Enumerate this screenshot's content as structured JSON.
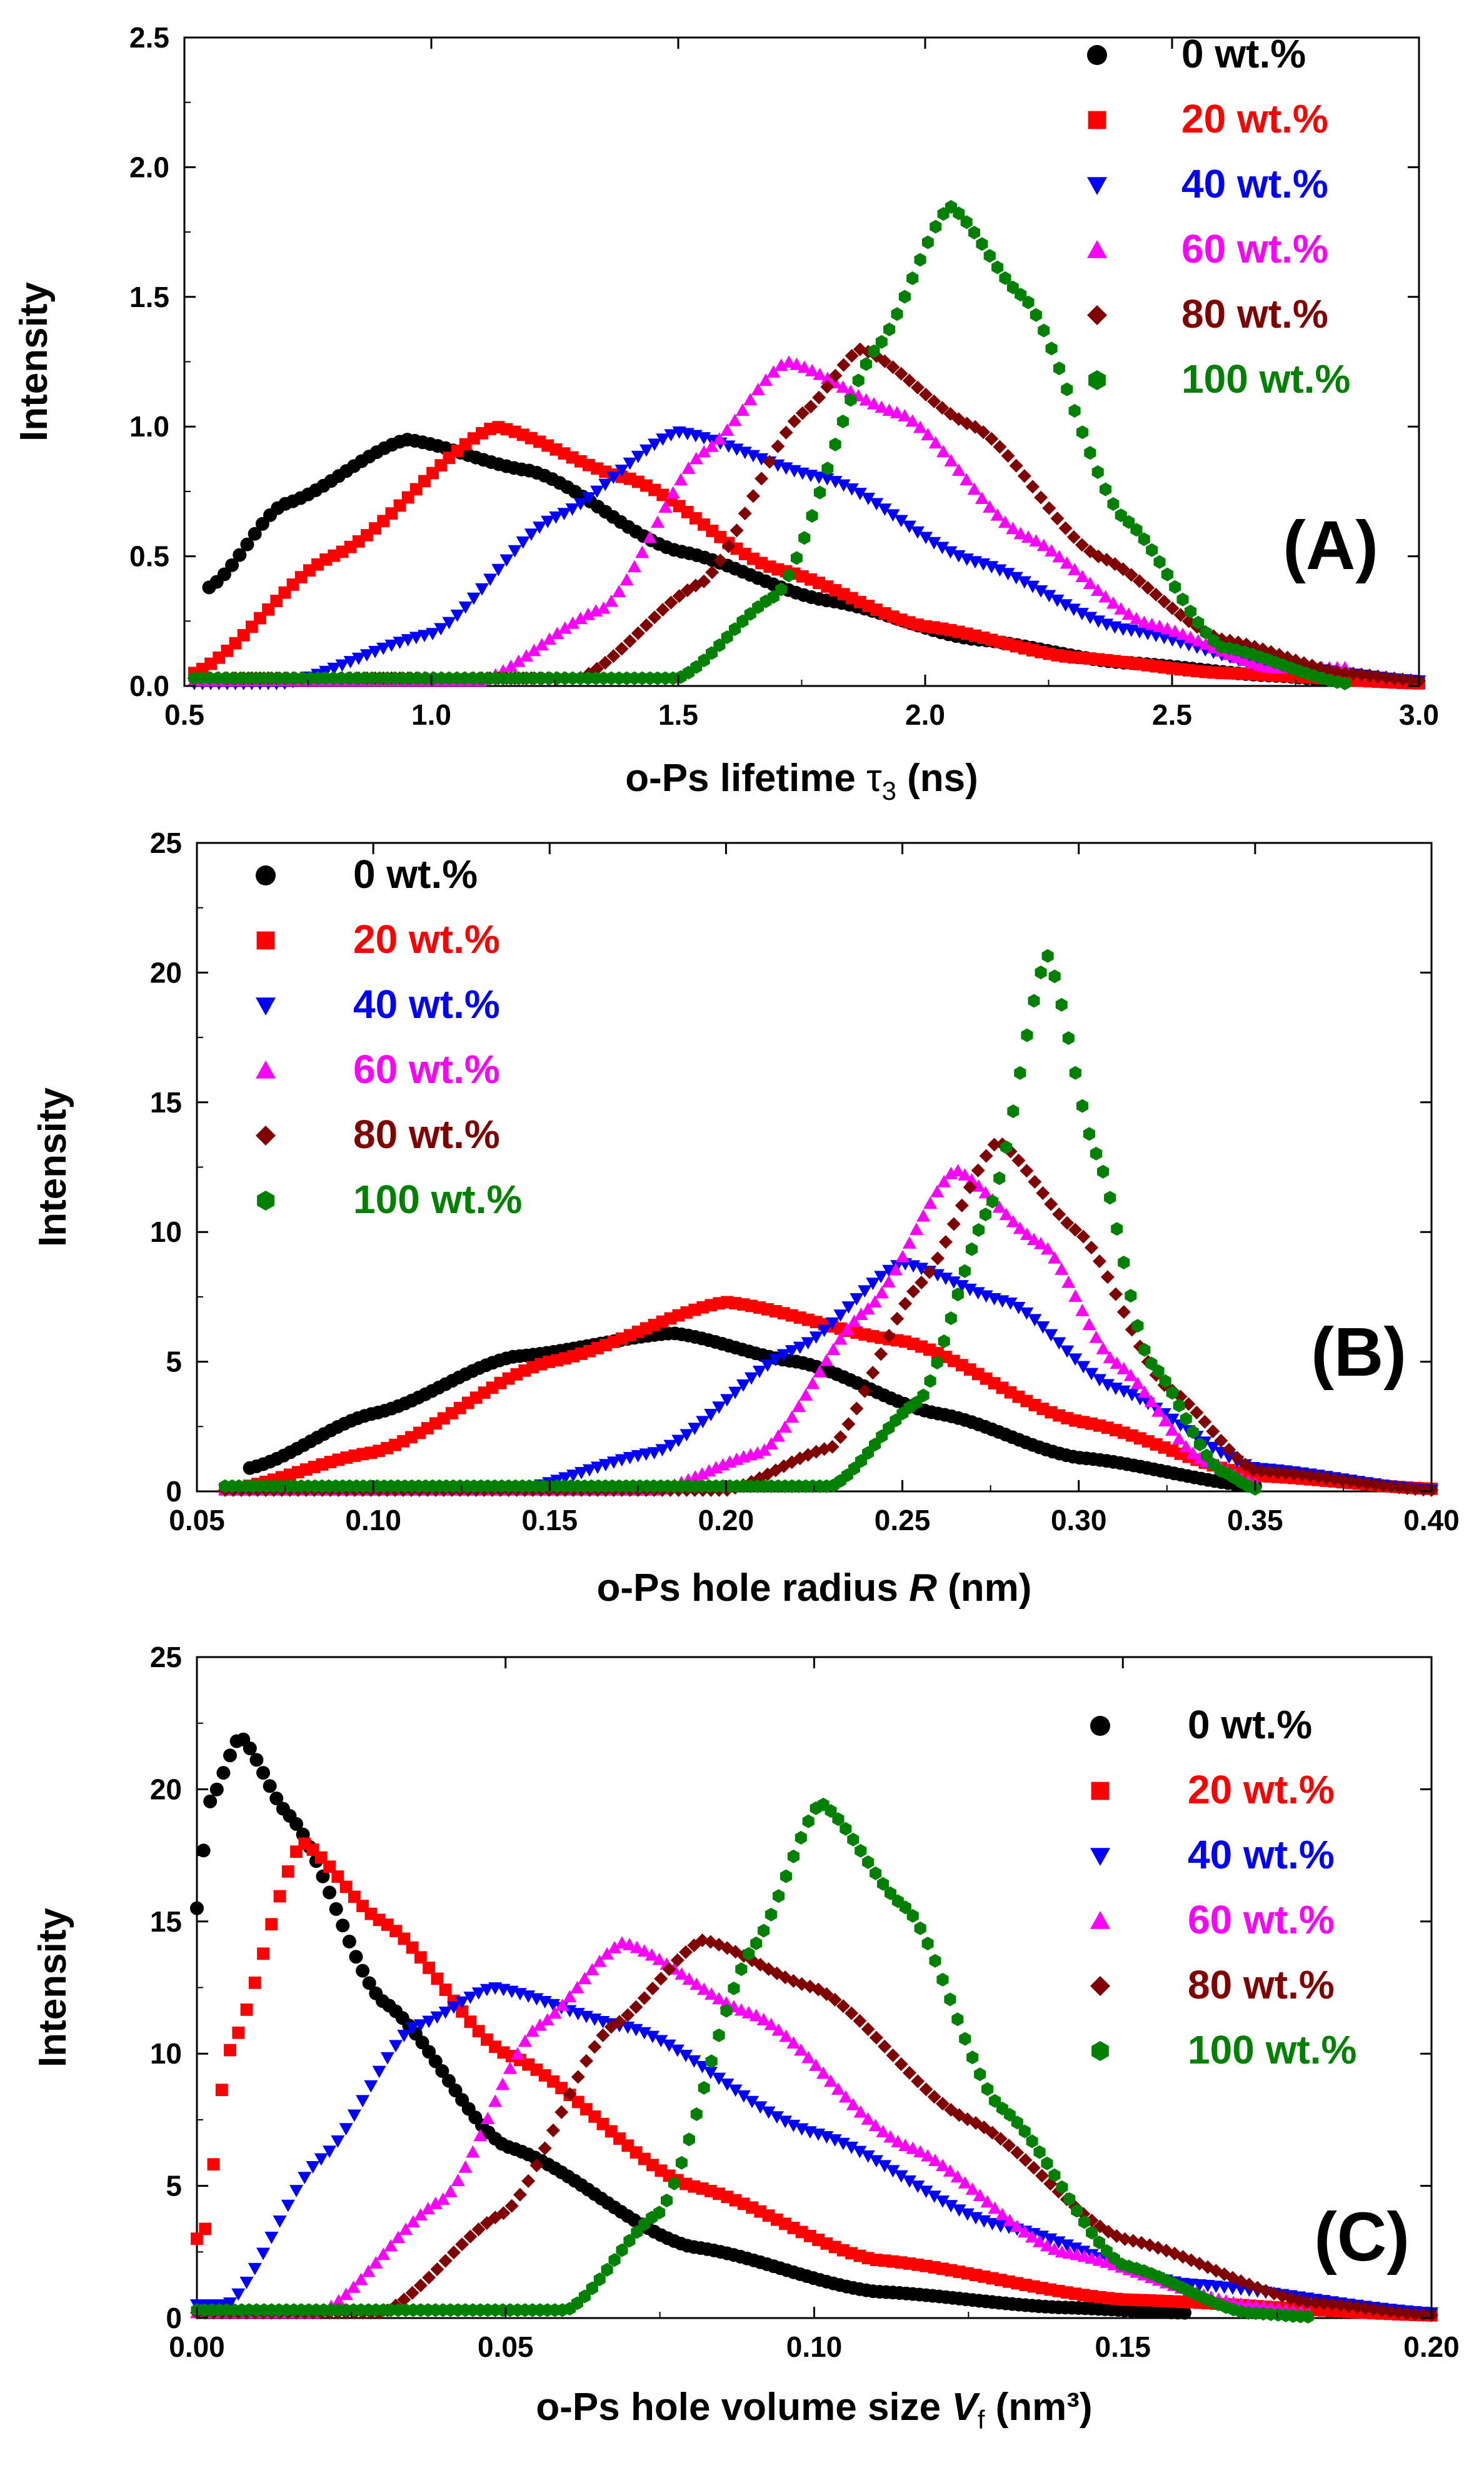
{
  "chart_data": [
    {
      "type": "scatter",
      "panel_label": "(A)",
      "title": "",
      "xlabel": {
        "prefix": "o-Ps lifetime ",
        "symbol": "τ",
        "subscript": "3",
        "suffix": " (ns)"
      },
      "ylabel": "Intensity",
      "xlim": [
        0.5,
        3.0
      ],
      "ylim": [
        0,
        2.5
      ],
      "xticks": [
        "0.5",
        "1.0",
        "1.5",
        "2.0",
        "2.5",
        "3.0"
      ],
      "yticks": [
        "0.0",
        "0.5",
        "1.0",
        "1.5",
        "2.0",
        "2.5"
      ],
      "legend_position": "top-right",
      "grid": false,
      "series": [
        {
          "name": "0 wt.%",
          "color": "#000000",
          "marker": "circle",
          "peak_x": 0.95,
          "peak_y": 0.95,
          "x_range": [
            0.55,
            2.85
          ],
          "values": [
            [
              0.55,
              0.38
            ],
            [
              0.7,
              0.7
            ],
            [
              0.95,
              0.95
            ],
            [
              1.2,
              0.83
            ],
            [
              1.5,
              0.52
            ],
            [
              1.8,
              0.33
            ],
            [
              2.1,
              0.18
            ],
            [
              2.4,
              0.09
            ],
            [
              2.7,
              0.04
            ],
            [
              2.85,
              0.02
            ]
          ]
        },
        {
          "name": "20 wt.%",
          "color": "#ff0000",
          "marker": "square",
          "peak_x": 1.13,
          "peak_y": 1.0,
          "x_range": [
            0.52,
            3.0
          ],
          "values": [
            [
              0.52,
              0.05
            ],
            [
              0.8,
              0.5
            ],
            [
              1.13,
              1.0
            ],
            [
              1.4,
              0.8
            ],
            [
              1.7,
              0.45
            ],
            [
              2.0,
              0.23
            ],
            [
              2.3,
              0.11
            ],
            [
              2.6,
              0.05
            ],
            [
              3.0,
              0.01
            ]
          ]
        },
        {
          "name": "40 wt.%",
          "color": "#0000ff",
          "marker": "triangle-down",
          "peak_x": 1.5,
          "peak_y": 0.98,
          "x_range": [
            0.52,
            3.0
          ],
          "values": [
            [
              0.7,
              0.01
            ],
            [
              1.0,
              0.2
            ],
            [
              1.25,
              0.65
            ],
            [
              1.5,
              0.98
            ],
            [
              1.8,
              0.8
            ],
            [
              2.1,
              0.48
            ],
            [
              2.4,
              0.22
            ],
            [
              2.7,
              0.08
            ],
            [
              3.0,
              0.02
            ]
          ]
        },
        {
          "name": "60 wt.%",
          "color": "#ff00ff",
          "marker": "triangle-up",
          "peak_x": 1.72,
          "peak_y": 1.25,
          "x_range": [
            0.52,
            2.85
          ],
          "values": [
            [
              1.1,
              0.02
            ],
            [
              1.35,
              0.3
            ],
            [
              1.55,
              0.9
            ],
            [
              1.72,
              1.25
            ],
            [
              1.95,
              1.05
            ],
            [
              2.2,
              0.58
            ],
            [
              2.45,
              0.24
            ],
            [
              2.7,
              0.07
            ]
          ]
        },
        {
          "name": "80 wt.%",
          "color": "#800000",
          "marker": "diamond",
          "peak_x": 1.87,
          "peak_y": 1.3,
          "x_range": [
            0.52,
            3.0
          ],
          "values": [
            [
              1.3,
              0.03
            ],
            [
              1.55,
              0.4
            ],
            [
              1.75,
              1.05
            ],
            [
              1.87,
              1.3
            ],
            [
              2.1,
              1.0
            ],
            [
              2.35,
              0.5
            ],
            [
              2.6,
              0.18
            ],
            [
              2.85,
              0.05
            ],
            [
              3.0,
              0.02
            ]
          ]
        },
        {
          "name": "100 wt.%",
          "color": "#008000",
          "marker": "hexagon",
          "peak_x": 2.05,
          "peak_y": 1.85,
          "x_range": [
            0.52,
            2.85
          ],
          "values": [
            [
              1.5,
              0.03
            ],
            [
              1.7,
              0.35
            ],
            [
              1.9,
              1.3
            ],
            [
              2.05,
              1.85
            ],
            [
              2.2,
              1.5
            ],
            [
              2.4,
              0.65
            ],
            [
              2.6,
              0.15
            ],
            [
              2.85,
              0.01
            ]
          ]
        }
      ]
    },
    {
      "type": "scatter",
      "panel_label": "(B)",
      "title": "",
      "xlabel": {
        "prefix": "o-Ps hole radius ",
        "symbol": "R",
        "subscript": "",
        "suffix": " (nm)"
      },
      "ylabel": "Intensity",
      "xlim": [
        0.05,
        0.4
      ],
      "ylim": [
        0,
        25
      ],
      "xticks": [
        "0.05",
        "0.10",
        "0.15",
        "0.20",
        "0.25",
        "0.30",
        "0.35",
        "0.40"
      ],
      "yticks": [
        "0",
        "5",
        "10",
        "15",
        "20",
        "25"
      ],
      "legend_position": "top-left",
      "grid": false,
      "series": [
        {
          "name": "0 wt.%",
          "color": "#000000",
          "marker": "circle",
          "peak_x": 0.185,
          "peak_y": 6.1,
          "x_range": [
            0.065,
            0.35
          ],
          "values": [
            [
              0.065,
              0.9
            ],
            [
              0.1,
              3.0
            ],
            [
              0.14,
              5.2
            ],
            [
              0.185,
              6.1
            ],
            [
              0.22,
              5.0
            ],
            [
              0.26,
              3.0
            ],
            [
              0.3,
              1.3
            ],
            [
              0.35,
              0.2
            ]
          ]
        },
        {
          "name": "20 wt.%",
          "color": "#ff0000",
          "marker": "square",
          "peak_x": 0.2,
          "peak_y": 7.3,
          "x_range": [
            0.058,
            0.4
          ],
          "values": [
            [
              0.06,
              0.1
            ],
            [
              0.1,
              1.5
            ],
            [
              0.15,
              5.0
            ],
            [
              0.2,
              7.3
            ],
            [
              0.25,
              5.8
            ],
            [
              0.3,
              2.7
            ],
            [
              0.35,
              0.6
            ],
            [
              0.4,
              0.1
            ]
          ]
        },
        {
          "name": "40 wt.%",
          "color": "#0000ff",
          "marker": "triangle-down",
          "peak_x": 0.25,
          "peak_y": 8.8,
          "x_range": [
            0.058,
            0.4
          ],
          "values": [
            [
              0.14,
              0.05
            ],
            [
              0.18,
              1.5
            ],
            [
              0.22,
              5.5
            ],
            [
              0.25,
              8.8
            ],
            [
              0.28,
              7.3
            ],
            [
              0.31,
              4.0
            ],
            [
              0.35,
              0.9
            ],
            [
              0.4,
              0.05
            ]
          ]
        },
        {
          "name": "60 wt.%",
          "color": "#ff00ff",
          "marker": "triangle-up",
          "peak_x": 0.265,
          "peak_y": 12.4,
          "x_range": [
            0.058,
            0.35
          ],
          "values": [
            [
              0.18,
              0.05
            ],
            [
              0.21,
              1.5
            ],
            [
              0.24,
              7.0
            ],
            [
              0.265,
              12.4
            ],
            [
              0.29,
              9.5
            ],
            [
              0.31,
              5.0
            ],
            [
              0.335,
              1.2
            ],
            [
              0.35,
              0.3
            ]
          ]
        },
        {
          "name": "80 wt.%",
          "color": "#800000",
          "marker": "diamond",
          "peak_x": 0.277,
          "peak_y": 13.5,
          "x_range": [
            0.058,
            0.4
          ],
          "values": [
            [
              0.2,
              0.05
            ],
            [
              0.23,
              1.7
            ],
            [
              0.255,
              8.0
            ],
            [
              0.277,
              13.5
            ],
            [
              0.3,
              10.0
            ],
            [
              0.325,
              4.0
            ],
            [
              0.35,
              0.8
            ],
            [
              0.4,
              0.05
            ]
          ]
        },
        {
          "name": "100 wt.%",
          "color": "#008000",
          "marker": "hexagon",
          "peak_x": 0.291,
          "peak_y": 20.7,
          "x_range": [
            0.058,
            0.35
          ],
          "values": [
            [
              0.23,
              0.2
            ],
            [
              0.255,
              3.5
            ],
            [
              0.275,
              11.0
            ],
            [
              0.291,
              20.7
            ],
            [
              0.305,
              13.0
            ],
            [
              0.32,
              5.0
            ],
            [
              0.34,
              0.8
            ],
            [
              0.35,
              0.1
            ]
          ]
        }
      ]
    },
    {
      "type": "scatter",
      "panel_label": "(C)",
      "title": "",
      "xlabel": {
        "prefix": "o-Ps hole volume size ",
        "symbol": "V",
        "subscript": "f",
        "suffix": " (nm³)"
      },
      "ylabel": "Intensity",
      "xlim": [
        0.0,
        0.2
      ],
      "ylim": [
        0,
        25
      ],
      "xticks": [
        "0.00",
        "0.05",
        "0.10",
        "0.15",
        "0.20"
      ],
      "yticks": [
        "0",
        "5",
        "10",
        "15",
        "20",
        "25"
      ],
      "legend_position": "top-right",
      "grid": false,
      "series": [
        {
          "name": "0 wt.%",
          "color": "#000000",
          "marker": "circle",
          "peak_x": 0.007,
          "peak_y": 22.0,
          "x_range": [
            0.0,
            0.16
          ],
          "values": [
            [
              0.0,
              15.5
            ],
            [
              0.002,
              19.5
            ],
            [
              0.007,
              22.0
            ],
            [
              0.015,
              19.0
            ],
            [
              0.03,
              12.0
            ],
            [
              0.05,
              6.5
            ],
            [
              0.08,
              2.7
            ],
            [
              0.11,
              1.0
            ],
            [
              0.14,
              0.4
            ],
            [
              0.16,
              0.2
            ]
          ]
        },
        {
          "name": "20 wt.%",
          "color": "#ff0000",
          "marker": "square",
          "peak_x": 0.017,
          "peak_y": 18.0,
          "x_range": [
            0.0,
            0.2
          ],
          "values": [
            [
              0.001,
              3.0
            ],
            [
              0.005,
              10.0
            ],
            [
              0.017,
              18.0
            ],
            [
              0.03,
              15.0
            ],
            [
              0.05,
              10.0
            ],
            [
              0.08,
              5.0
            ],
            [
              0.11,
              2.2
            ],
            [
              0.15,
              0.7
            ],
            [
              0.2,
              0.1
            ]
          ]
        },
        {
          "name": "40 wt.%",
          "color": "#0000ff",
          "marker": "triangle-down",
          "peak_x": 0.048,
          "peak_y": 12.5,
          "x_range": [
            0.0,
            0.2
          ],
          "values": [
            [
              0.005,
              0.5
            ],
            [
              0.02,
              6.0
            ],
            [
              0.035,
              11.0
            ],
            [
              0.048,
              12.5
            ],
            [
              0.07,
              11.0
            ],
            [
              0.1,
              7.0
            ],
            [
              0.13,
              3.5
            ],
            [
              0.16,
              1.3
            ],
            [
              0.2,
              0.2
            ]
          ]
        },
        {
          "name": "60 wt.%",
          "color": "#ff00ff",
          "marker": "triangle-up",
          "peak_x": 0.069,
          "peak_y": 14.2,
          "x_range": [
            0.0,
            0.18
          ],
          "values": [
            [
              0.02,
              0.2
            ],
            [
              0.04,
              4.5
            ],
            [
              0.055,
              11.0
            ],
            [
              0.069,
              14.2
            ],
            [
              0.09,
              11.5
            ],
            [
              0.115,
              6.5
            ],
            [
              0.14,
              2.5
            ],
            [
              0.17,
              0.5
            ],
            [
              0.18,
              0.2
            ]
          ]
        },
        {
          "name": "80 wt.%",
          "color": "#800000",
          "marker": "diamond",
          "peak_x": 0.082,
          "peak_y": 14.3,
          "x_range": [
            0.0,
            0.2
          ],
          "values": [
            [
              0.03,
              0.2
            ],
            [
              0.05,
              4.0
            ],
            [
              0.067,
              11.0
            ],
            [
              0.082,
              14.3
            ],
            [
              0.1,
              12.5
            ],
            [
              0.125,
              7.5
            ],
            [
              0.15,
              3.0
            ],
            [
              0.18,
              0.6
            ],
            [
              0.2,
              0.1
            ]
          ]
        },
        {
          "name": "100 wt.%",
          "color": "#008000",
          "marker": "hexagon",
          "peak_x": 0.101,
          "peak_y": 19.5,
          "x_range": [
            0.0,
            0.18
          ],
          "values": [
            [
              0.06,
              0.3
            ],
            [
              0.075,
              4.0
            ],
            [
              0.09,
              14.0
            ],
            [
              0.101,
              19.5
            ],
            [
              0.115,
              15.5
            ],
            [
              0.13,
              8.0
            ],
            [
              0.15,
              2.0
            ],
            [
              0.17,
              0.2
            ],
            [
              0.18,
              0.05
            ]
          ]
        }
      ]
    }
  ]
}
